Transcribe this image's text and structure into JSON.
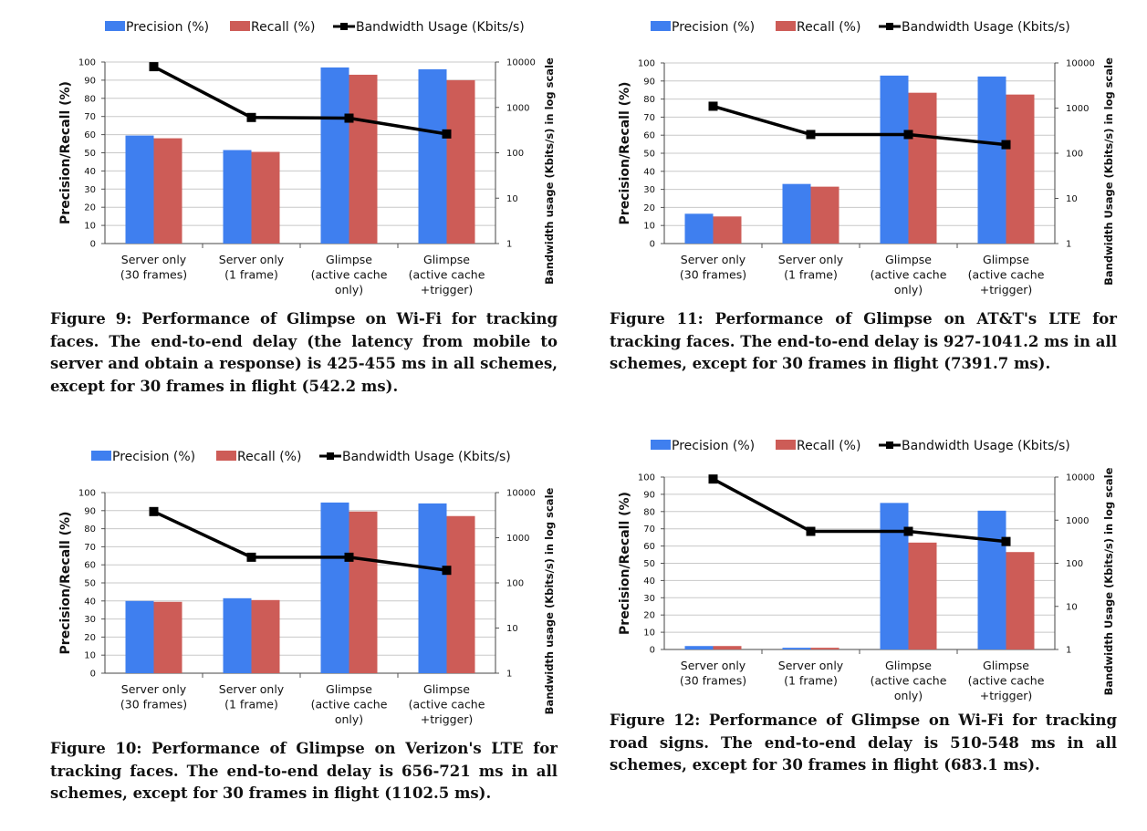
{
  "legend_labels": {
    "precision": "Precision (%)",
    "recall": "Recall (%)",
    "bandwidth": "Bandwidth Usage (Kbits/s)"
  },
  "colors": {
    "precision": "#3f7fef",
    "recall": "#cd5c57",
    "bandwidth": "#000000"
  },
  "chart_data": [
    {
      "type": "bar",
      "categories": [
        [
          "Server only",
          "(30 frames)"
        ],
        [
          "Server only",
          "(1 frame)"
        ],
        [
          "Glimpse",
          "(active cache",
          "only)"
        ],
        [
          "Glimpse",
          "(active cache",
          "+trigger)"
        ]
      ],
      "series": [
        {
          "name": "Precision (%)",
          "values": [
            59.5,
            51.5,
            97,
            96
          ]
        },
        {
          "name": "Recall (%)",
          "values": [
            58,
            50.5,
            93,
            90
          ]
        }
      ],
      "line_series": {
        "name": "Bandwidth Usage (Kbits/s)",
        "values": [
          7900,
          600,
          580,
          260
        ],
        "scale": "log"
      },
      "ylabel": "Precision/Recall (%)",
      "ylim": [
        0,
        100
      ],
      "y_ticks": [
        "0",
        "10",
        "20",
        "30",
        "40",
        "50",
        "60",
        "70",
        "80",
        "90",
        "100"
      ],
      "y2label": "Bandwidth usage (Kbits/s) in log scale",
      "y2lim": [
        1,
        10000
      ],
      "y2_ticks": [
        "1",
        "10",
        "100",
        "1000",
        "10000"
      ],
      "caption": "Figure 9: Performance of Glimpse on Wi-Fi for tracking faces. The end-to-end delay (the latency from mobile to server and obtain a response) is 425-455 ms in all schemes, except for 30 frames in flight (542.2 ms)."
    },
    {
      "type": "bar",
      "categories": [
        [
          "Server only",
          "(30 frames)"
        ],
        [
          "Server only",
          "(1 frame)"
        ],
        [
          "Glimpse",
          "(active cache",
          "only)"
        ],
        [
          "Glimpse",
          "(active cache",
          "+trigger)"
        ]
      ],
      "series": [
        {
          "name": "Precision (%)",
          "values": [
            16.5,
            33,
            93,
            92.5
          ]
        },
        {
          "name": "Recall (%)",
          "values": [
            15,
            31.5,
            83.5,
            82.5
          ]
        }
      ],
      "line_series": {
        "name": "Bandwidth Usage (Kbits/s)",
        "values": [
          1100,
          260,
          260,
          155
        ],
        "scale": "log"
      },
      "ylabel": "Precision/Recall (%)",
      "ylim": [
        0,
        100
      ],
      "y_ticks": [
        "0",
        "10",
        "20",
        "30",
        "40",
        "50",
        "60",
        "70",
        "80",
        "90",
        "100"
      ],
      "y2label": "Bandwidth Usage (Kbits/s) in log scale",
      "y2lim": [
        1,
        10000
      ],
      "y2_ticks": [
        "1",
        "10",
        "100",
        "1000",
        "10000"
      ],
      "caption": "Figure 11: Performance of Glimpse on AT&T's LTE for tracking faces. The end-to-end delay is 927-1041.2 ms in all schemes, except for 30 frames in flight (7391.7 ms)."
    },
    {
      "type": "bar",
      "categories": [
        [
          "Server only",
          "(30 frames)"
        ],
        [
          "Server only",
          "(1 frame)"
        ],
        [
          "Glimpse",
          "(active cache",
          "only)"
        ],
        [
          "Glimpse",
          "(active cache",
          "+trigger)"
        ]
      ],
      "series": [
        {
          "name": "Precision (%)",
          "values": [
            40,
            41.5,
            94.5,
            94
          ]
        },
        {
          "name": "Recall (%)",
          "values": [
            39.5,
            40.5,
            89.5,
            87
          ]
        }
      ],
      "line_series": {
        "name": "Bandwidth Usage (Kbits/s)",
        "values": [
          3800,
          370,
          370,
          190
        ],
        "scale": "log"
      },
      "ylabel": "Precision/Recall (%)",
      "ylim": [
        0,
        100
      ],
      "y_ticks": [
        "0",
        "10",
        "20",
        "30",
        "40",
        "50",
        "60",
        "70",
        "80",
        "90",
        "100"
      ],
      "y2label": "Bandwidth usage (Kbits/s) in log scale",
      "y2lim": [
        1,
        10000
      ],
      "y2_ticks": [
        "1",
        "10",
        "100",
        "1000",
        "10000"
      ],
      "caption": "Figure 10: Performance of Glimpse on Verizon's LTE for tracking faces. The end-to-end delay is 656-721 ms in all schemes, except for 30 frames in flight (1102.5 ms)."
    },
    {
      "type": "bar",
      "categories": [
        [
          "Server only",
          "(30 frames)"
        ],
        [
          "Server only",
          "(1 frame)"
        ],
        [
          "Glimpse",
          "(active cache",
          "only)"
        ],
        [
          "Glimpse",
          "(active cache",
          "+trigger)"
        ]
      ],
      "series": [
        {
          "name": "Precision (%)",
          "values": [
            2,
            1,
            85,
            80.5
          ]
        },
        {
          "name": "Recall (%)",
          "values": [
            2,
            1,
            62,
            56.5
          ]
        }
      ],
      "line_series": {
        "name": "Bandwidth Usage (Kbits/s)",
        "values": [
          9000,
          550,
          550,
          320
        ],
        "scale": "log"
      },
      "ylabel": "Precision/Recall (%)",
      "ylim": [
        0,
        100
      ],
      "y_ticks": [
        "0",
        "10",
        "20",
        "30",
        "40",
        "50",
        "60",
        "70",
        "80",
        "90",
        "100"
      ],
      "y2label": "Bandwidth Usage (Kbits/s) in log scale",
      "y2lim": [
        1,
        10000
      ],
      "y2_ticks": [
        "1",
        "10",
        "100",
        "1000",
        "10000"
      ],
      "caption": "Figure 12: Performance of Glimpse on Wi-Fi for tracking road signs. The end-to-end delay is 510-548 ms in all schemes, except for 30 frames in flight (683.1 ms)."
    }
  ]
}
